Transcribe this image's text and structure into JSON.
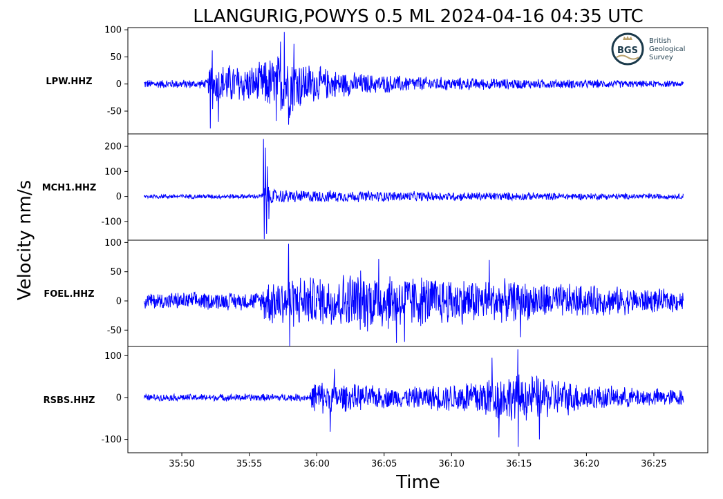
{
  "colors": {
    "trace": "#0000ff",
    "logo_dark": "#1b3a4b",
    "logo_gold": "#b8a06a"
  },
  "logo": {
    "mark": "BGS",
    "lines": [
      "British",
      "Geological",
      "Survey"
    ]
  },
  "chart_data": {
    "type": "line",
    "title": "LLANGURIG,POWYS 0.5 ML   2024-04-16 04:35 UTC",
    "xlabel": "Time",
    "ylabel": "Velocity nm/s",
    "x_ticks": [
      {
        "value": 230,
        "label": "35:50"
      },
      {
        "value": 235,
        "label": "35:55"
      },
      {
        "value": 240,
        "label": "36:00"
      },
      {
        "value": 245,
        "label": "36:05"
      },
      {
        "value": 250,
        "label": "36:10"
      },
      {
        "value": 255,
        "label": "36:15"
      },
      {
        "value": 260,
        "label": "36:20"
      },
      {
        "value": 265,
        "label": "36:25"
      }
    ],
    "xlim": [
      226,
      269
    ],
    "trace_span": [
      227.2,
      267.2
    ],
    "grid": false,
    "panels": [
      {
        "station": "LPW.HHZ",
        "ylim": [
          -92,
          104
        ],
        "yticks": [
          {
            "v": 100,
            "l": "100"
          },
          {
            "v": 50,
            "l": "50"
          },
          {
            "v": 0,
            "l": "0"
          },
          {
            "v": -50,
            "l": "-50"
          }
        ],
        "envelope": [
          [
            227.2,
            9
          ],
          [
            231.9,
            9
          ],
          [
            232.2,
            62
          ],
          [
            232.4,
            40
          ],
          [
            233.5,
            42
          ],
          [
            235.5,
            38
          ],
          [
            236.5,
            55
          ],
          [
            237.4,
            65
          ],
          [
            238,
            70
          ],
          [
            239,
            48
          ],
          [
            240,
            36
          ],
          [
            242,
            26
          ],
          [
            244,
            20
          ],
          [
            248,
            15
          ],
          [
            252,
            12
          ],
          [
            256,
            10
          ],
          [
            260,
            9
          ],
          [
            264,
            7
          ],
          [
            267.2,
            6
          ]
        ],
        "spikes": [
          [
            232.1,
            -82
          ],
          [
            232.25,
            62
          ],
          [
            232.7,
            -70
          ],
          [
            237.0,
            -68
          ],
          [
            237.6,
            96
          ],
          [
            237.9,
            -75
          ],
          [
            238.3,
            74
          ],
          [
            237.3,
            78
          ]
        ]
      },
      {
        "station": "MCH1.HHZ",
        "ylim": [
          -175,
          250
        ],
        "yticks": [
          {
            "v": 200,
            "l": "200"
          },
          {
            "v": 100,
            "l": "100"
          },
          {
            "v": 0,
            "l": "0"
          },
          {
            "v": -100,
            "l": "-100"
          }
        ],
        "envelope": [
          [
            227.2,
            10
          ],
          [
            235.9,
            11
          ],
          [
            236.1,
            45
          ],
          [
            236.4,
            42
          ],
          [
            237,
            32
          ],
          [
            239,
            28
          ],
          [
            244,
            24
          ],
          [
            250,
            20
          ],
          [
            255,
            18
          ],
          [
            260,
            15
          ],
          [
            264,
            13
          ],
          [
            267.2,
            12
          ]
        ],
        "spikes": [
          [
            236.05,
            230
          ],
          [
            236.12,
            -170
          ],
          [
            236.2,
            195
          ],
          [
            236.28,
            -150
          ],
          [
            236.35,
            120
          ],
          [
            236.45,
            -90
          ]
        ]
      },
      {
        "station": "FOEL.HHZ",
        "ylim": [
          -78,
          104
        ],
        "yticks": [
          {
            "v": 100,
            "l": "100"
          },
          {
            "v": 50,
            "l": "50"
          },
          {
            "v": 0,
            "l": "0"
          },
          {
            "v": -50,
            "l": "-50"
          }
        ],
        "envelope": [
          [
            227.2,
            16
          ],
          [
            235.9,
            17
          ],
          [
            236.1,
            42
          ],
          [
            238,
            50
          ],
          [
            240,
            45
          ],
          [
            243,
            58
          ],
          [
            245,
            56
          ],
          [
            248,
            48
          ],
          [
            252,
            42
          ],
          [
            256,
            36
          ],
          [
            260,
            30
          ],
          [
            264,
            24
          ],
          [
            267.2,
            20
          ]
        ],
        "spikes": [
          [
            237.9,
            98
          ],
          [
            238.0,
            -77
          ],
          [
            245.9,
            -72
          ],
          [
            244.6,
            72
          ],
          [
            246.5,
            -70
          ],
          [
            255.1,
            -62
          ],
          [
            252.8,
            70
          ]
        ]
      },
      {
        "station": "RSBS.HHZ",
        "ylim": [
          -132,
          122
        ],
        "yticks": [
          {
            "v": 100,
            "l": "100"
          },
          {
            "v": 0,
            "l": "0"
          },
          {
            "v": -100,
            "l": "-100"
          }
        ],
        "envelope": [
          [
            227.2,
            9
          ],
          [
            239.5,
            10
          ],
          [
            239.8,
            48
          ],
          [
            241,
            40
          ],
          [
            243,
            34
          ],
          [
            246,
            26
          ],
          [
            248,
            30
          ],
          [
            250,
            38
          ],
          [
            252,
            55
          ],
          [
            254,
            62
          ],
          [
            256,
            60
          ],
          [
            258,
            50
          ],
          [
            260,
            36
          ],
          [
            262,
            28
          ],
          [
            264,
            25
          ],
          [
            267.2,
            22
          ]
        ],
        "spikes": [
          [
            241,
            -82
          ],
          [
            241.3,
            68
          ],
          [
            254.9,
            115
          ],
          [
            254.95,
            -118
          ],
          [
            253.0,
            95
          ],
          [
            256.5,
            -100
          ],
          [
            253.5,
            -95
          ]
        ]
      }
    ]
  }
}
